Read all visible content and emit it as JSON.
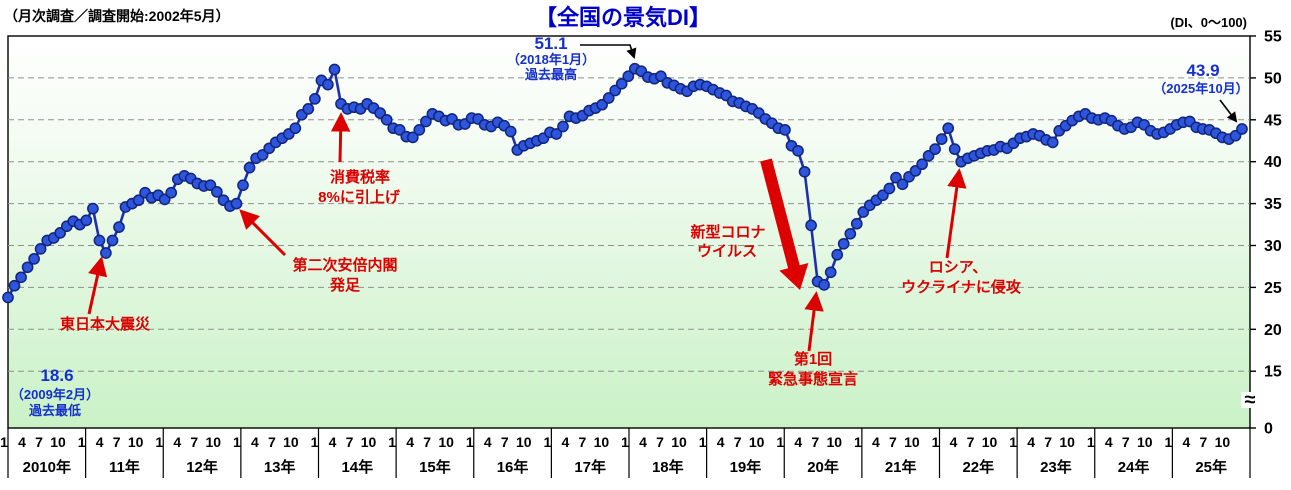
{
  "header": {
    "survey_note": "（月次調査／調査開始:2002年5月）",
    "title": "【全国の景気DI】",
    "unit_note": "(DI、0～100)"
  },
  "chart_data": {
    "type": "line",
    "title": "【全国の景気DI】",
    "ylabel": "DI",
    "frequency": "monthly",
    "x_start": "2010-01",
    "x_end": "2025-10",
    "ylim_shown": [
      0,
      55
    ],
    "y_axis_break_between": [
      0,
      15
    ],
    "y_ticks": [
      0,
      15,
      20,
      25,
      30,
      35,
      40,
      45,
      50,
      55
    ],
    "grid": "dashed horizontal",
    "month_tick_labels": [
      "1",
      "4",
      "7",
      "10"
    ],
    "year_labels": [
      "2010年",
      "11年",
      "12年",
      "13年",
      "14年",
      "15年",
      "16年",
      "17年",
      "18年",
      "19年",
      "20年",
      "21年",
      "22年",
      "23年",
      "24年",
      "25年"
    ],
    "series": [
      {
        "name": "全国の景気DI",
        "values": [
          23.8,
          25.2,
          26.2,
          27.4,
          28.4,
          29.6,
          30.6,
          30.9,
          31.5,
          32.3,
          32.9,
          32.5,
          33.0,
          34.4,
          30.6,
          29.1,
          30.6,
          32.2,
          34.6,
          35.0,
          35.4,
          36.3,
          35.7,
          36.0,
          35.5,
          36.3,
          37.9,
          38.3,
          38.0,
          37.4,
          37.1,
          37.2,
          36.4,
          35.4,
          34.7,
          35.0,
          37.2,
          39.3,
          40.4,
          40.8,
          41.6,
          42.3,
          42.8,
          43.3,
          44.0,
          45.6,
          46.3,
          47.5,
          49.7,
          49.2,
          51.0,
          46.9,
          46.3,
          46.5,
          46.3,
          46.9,
          46.4,
          45.8,
          45.0,
          44.0,
          43.8,
          43.0,
          42.9,
          43.8,
          44.8,
          45.7,
          45.4,
          44.9,
          45.1,
          44.4,
          44.5,
          45.2,
          45.1,
          44.4,
          44.2,
          44.7,
          44.3,
          43.6,
          41.4,
          41.9,
          42.2,
          42.5,
          42.8,
          43.5,
          43.3,
          44.2,
          45.4,
          45.2,
          45.5,
          46.1,
          46.4,
          46.8,
          47.6,
          48.5,
          49.3,
          50.2,
          51.1,
          50.8,
          50.1,
          49.9,
          50.2,
          49.4,
          49.1,
          48.7,
          48.4,
          49.0,
          49.2,
          49.0,
          48.6,
          48.2,
          47.9,
          47.2,
          47.0,
          46.6,
          46.3,
          45.8,
          45.1,
          44.6,
          44.0,
          43.8,
          41.9,
          41.3,
          38.8,
          32.4,
          25.7,
          25.3,
          26.8,
          28.9,
          30.2,
          31.4,
          32.6,
          34.0,
          34.8,
          35.4,
          36.0,
          36.8,
          38.1,
          37.3,
          38.2,
          38.9,
          39.7,
          40.7,
          41.5,
          42.7,
          44.0,
          41.5,
          40.0,
          40.4,
          40.7,
          41.0,
          41.3,
          41.4,
          41.8,
          41.6,
          42.2,
          42.8,
          43.0,
          43.3,
          43.1,
          42.6,
          42.3,
          43.7,
          44.3,
          44.9,
          45.4,
          45.7,
          45.2,
          45.0,
          45.2,
          44.9,
          44.3,
          43.9,
          44.1,
          44.7,
          44.4,
          43.7,
          43.3,
          43.5,
          43.9,
          44.4,
          44.7,
          44.8,
          44.1,
          43.9,
          43.8,
          43.4,
          42.9,
          42.7,
          43.1,
          43.9
        ]
      }
    ],
    "callouts": {
      "record_high": {
        "value": "51.1",
        "date": "（2018年1月）",
        "note": "過去最高",
        "target": "2018-01",
        "color": "#1530cf"
      },
      "latest": {
        "value": "43.9",
        "date": "（2025年10月）",
        "note": "",
        "target": "2025-10",
        "color": "#1530cf"
      },
      "record_low": {
        "value": "18.6",
        "date": "（2009年2月）",
        "note": "過去最低",
        "target": "2009-02",
        "color": "#1530cf"
      }
    },
    "event_annotations": [
      {
        "lines": [
          "東日本大震災"
        ],
        "target": "2011-04",
        "color": "#dd0000"
      },
      {
        "lines": [
          "第二次安倍内閣",
          "発足"
        ],
        "target": "2012-12",
        "color": "#dd0000"
      },
      {
        "lines": [
          "消費税率",
          "8%に引上げ"
        ],
        "target": "2014-04",
        "color": "#dd0000"
      },
      {
        "lines": [
          "新型コロナ",
          "ウイルス"
        ],
        "target": "2020-04",
        "color": "#dd0000",
        "arrow": "thick"
      },
      {
        "lines": [
          "第1回",
          "緊急事態宣言"
        ],
        "target": "2020-05",
        "color": "#dd0000"
      },
      {
        "lines": [
          "ロシア、",
          "ウクライナに侵攻"
        ],
        "target": "2022-03",
        "color": "#dd0000"
      }
    ],
    "colors": {
      "line": "#1c2fae",
      "marker_fill": "#2d55dd",
      "marker_stroke": "#132579",
      "title_blue": "#0000cc",
      "callout_blue": "#1530cf",
      "event_red": "#dd0000",
      "plot_bg_top": "#ffffff",
      "plot_bg_bottom": "#c9f2c6",
      "gridline": "#909090"
    }
  }
}
